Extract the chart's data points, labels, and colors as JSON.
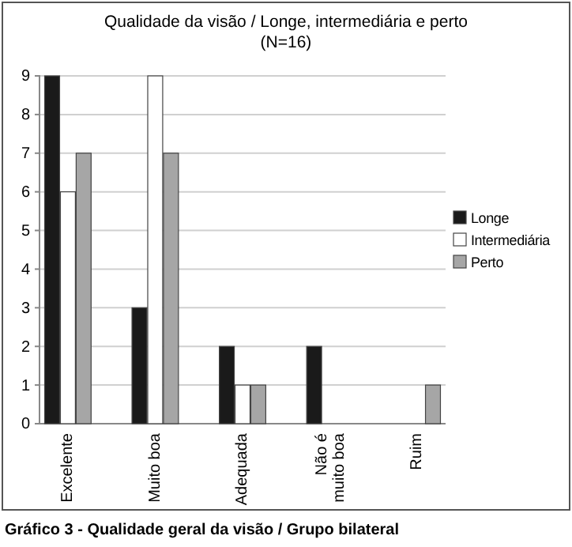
{
  "chart_data": {
    "type": "bar",
    "title": "Qualidade da visão / Longe, intermediária e perto",
    "subtitle": "(N=16)",
    "categories": [
      "Excelente",
      "Muito boa",
      "Adequada",
      "Não é muito boa",
      "Ruim"
    ],
    "series": [
      {
        "name": "Longe",
        "color": "#1a1a1a",
        "values": [
          9,
          3,
          2,
          2,
          0
        ]
      },
      {
        "name": "Intermediária",
        "color": "#ffffff",
        "values": [
          6,
          9,
          1,
          0,
          0
        ]
      },
      {
        "name": "Perto",
        "color": "#a6a6a6",
        "values": [
          7,
          7,
          1,
          0,
          1
        ]
      }
    ],
    "ylim": [
      0,
      9
    ],
    "yticks": [
      0,
      1,
      2,
      3,
      4,
      5,
      6,
      7,
      8,
      9
    ],
    "grid": "y",
    "legend": "right",
    "annotations": [
      "Gráfico 3 - Qualidade geral da visão / Grupo bilateral"
    ]
  }
}
